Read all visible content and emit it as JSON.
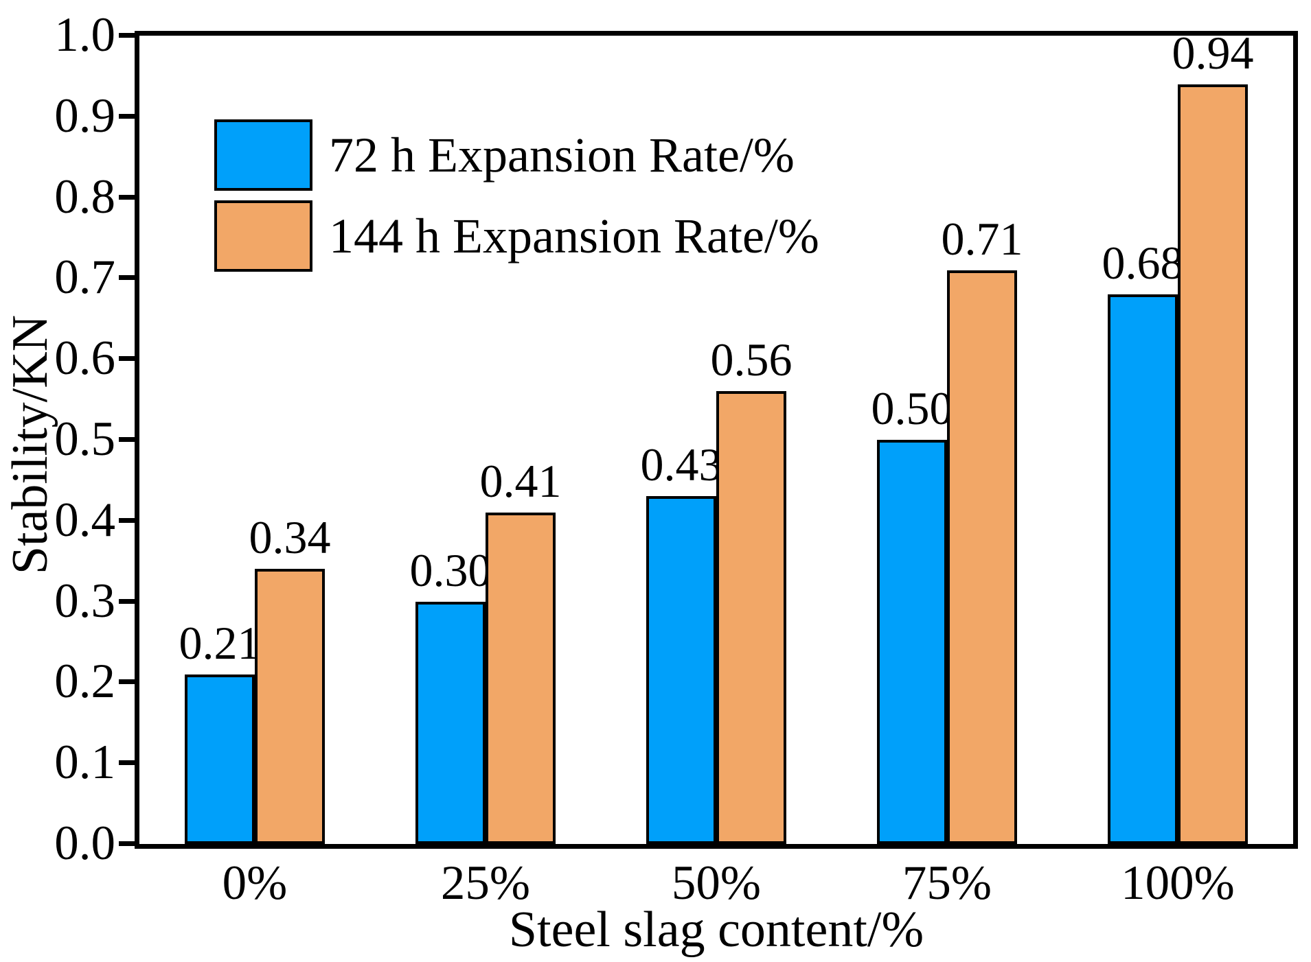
{
  "figure": {
    "background_color": "#ffffff",
    "text_color": "#000000",
    "axis_color": "#000000"
  },
  "chart_data": {
    "type": "bar",
    "title": "",
    "categories": [
      "0%",
      "25%",
      "50%",
      "75%",
      "100%"
    ],
    "series": [
      {
        "name": "72 h Expansion Rate/%",
        "color": "#00A0FA",
        "values": [
          0.21,
          0.3,
          0.43,
          0.5,
          0.68
        ],
        "labels": [
          "0.21",
          "0.30",
          "0.43",
          "0.50",
          "0.68"
        ]
      },
      {
        "name": "144 h Expansion Rate/%",
        "color": "#F2A767",
        "values": [
          0.34,
          0.41,
          0.56,
          0.71,
          0.94
        ],
        "labels": [
          "0.34",
          "0.41",
          "0.56",
          "0.71",
          "0.94"
        ]
      }
    ],
    "xlabel": "Steel slag content/%",
    "ylabel": "Stability/KN",
    "ylim": [
      0.0,
      1.0
    ],
    "ytick_step": 0.1,
    "yticks": [
      "0.0",
      "0.1",
      "0.2",
      "0.3",
      "0.4",
      "0.5",
      "0.6",
      "0.7",
      "0.8",
      "0.9",
      "1.0"
    ],
    "grid": false,
    "legend_position": "upper-left-inside",
    "bar_outline_color": "#000000"
  }
}
